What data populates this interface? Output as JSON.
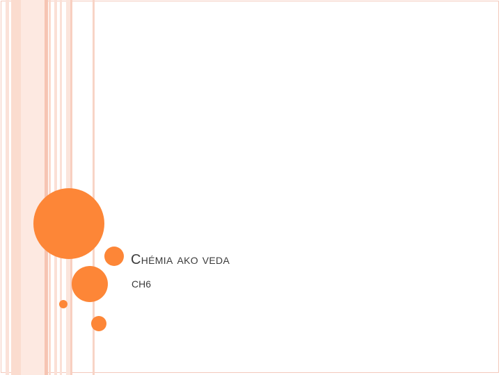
{
  "slide": {
    "title": "Chémia ako veda",
    "subtitle": "CH6"
  },
  "theme": {
    "accent": "#fd8637",
    "stripe_color": "#fbdccf",
    "text_color": "#3a3a3a"
  }
}
